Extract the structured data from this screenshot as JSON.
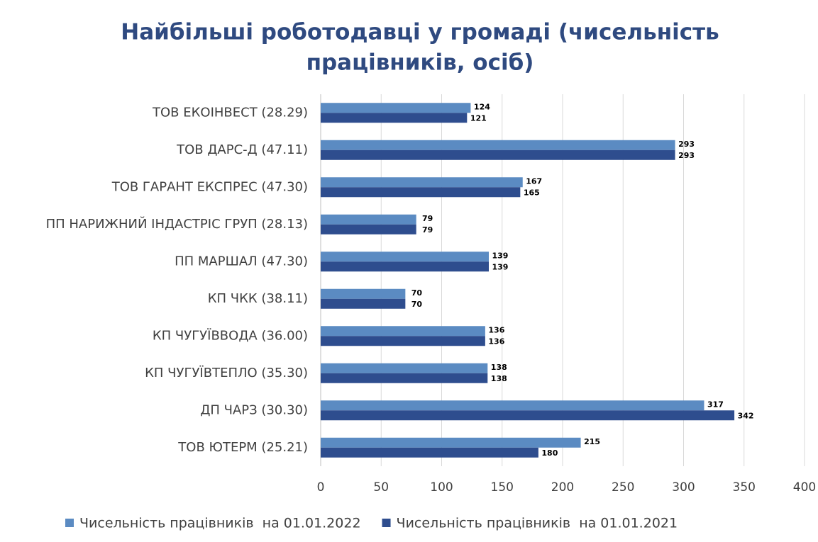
{
  "chart_data": {
    "type": "barh",
    "title": [
      "Найбільші роботодавці у громаді (чисельність",
      "працівників, осіб)"
    ],
    "categories": [
      "ТОВ ЕКОІНВЕСТ (28.29)",
      "ТОВ ДАРС-Д (47.11)",
      "ТОВ ГАРАНТ ЕКСПРЕС (47.30)",
      "ПП НАРИЖНИЙ ІНДАСТРІС ГРУП (28.13)",
      "ПП МАРШАЛ (47.30)",
      "КП ЧКК (38.11)",
      "КП ЧУГУЇВВОДА (36.00)",
      "КП ЧУГУЇВТЕПЛО (35.30)",
      "ДП ЧАРЗ (30.30)",
      "ТОВ ЮТЕРМ (25.21)"
    ],
    "series": [
      {
        "name": "Чисельність працівників  на 01.01.2022",
        "color": "#5b8bc2",
        "values": [
          124,
          293,
          167,
          79,
          139,
          70,
          136,
          138,
          317,
          215
        ]
      },
      {
        "name": "Чисельність працівників  на 01.01.2021",
        "color": "#2e4d8e",
        "values": [
          121,
          293,
          165,
          79,
          139,
          70,
          136,
          138,
          342,
          180
        ]
      }
    ],
    "xlim": [
      0,
      400
    ],
    "xticks": [
      0,
      50,
      100,
      150,
      200,
      250,
      300,
      350,
      400
    ],
    "grid": true,
    "legend": "bottom"
  }
}
